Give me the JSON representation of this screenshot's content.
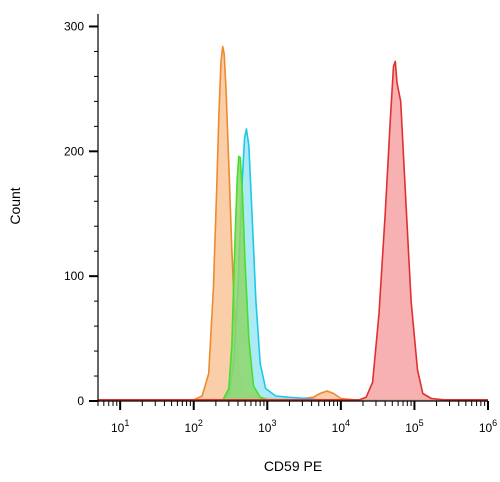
{
  "chart_data": {
    "type": "area",
    "xlabel": "CD59 PE",
    "ylabel": "Count",
    "x_scale": "log",
    "xlim": [
      5,
      1000000
    ],
    "ylim": [
      0,
      310
    ],
    "x_ticks": [
      {
        "value": 10,
        "base": "10",
        "exp": "1"
      },
      {
        "value": 100,
        "base": "10",
        "exp": "2"
      },
      {
        "value": 1000,
        "base": "10",
        "exp": "3"
      },
      {
        "value": 10000,
        "base": "10",
        "exp": "4"
      },
      {
        "value": 100000,
        "base": "10",
        "exp": "5"
      },
      {
        "value": 1000000,
        "base": "10",
        "exp": "6"
      }
    ],
    "y_ticks": [
      {
        "value": 0,
        "label": "0"
      },
      {
        "value": 100,
        "label": "100"
      },
      {
        "value": 200,
        "label": "200"
      },
      {
        "value": 300,
        "label": "300"
      }
    ],
    "grid": false,
    "legend": "none",
    "series": [
      {
        "color": "#ee8a2e",
        "fill": "#f9c59a",
        "points": [
          [
            5,
            1
          ],
          [
            100,
            1
          ],
          [
            130,
            4
          ],
          [
            160,
            22
          ],
          [
            185,
            90
          ],
          [
            205,
            170
          ],
          [
            220,
            230
          ],
          [
            235,
            272
          ],
          [
            248,
            284
          ],
          [
            260,
            278
          ],
          [
            275,
            250
          ],
          [
            300,
            190
          ],
          [
            330,
            120
          ],
          [
            370,
            55
          ],
          [
            420,
            18
          ],
          [
            500,
            6
          ],
          [
            700,
            3
          ],
          [
            1500,
            2
          ],
          [
            3000,
            2
          ],
          [
            4200,
            3
          ],
          [
            5200,
            6
          ],
          [
            6500,
            8
          ],
          [
            8000,
            6
          ],
          [
            10000,
            2
          ],
          [
            15000,
            1
          ],
          [
            1000000,
            1
          ]
        ]
      },
      {
        "color": "#1ec8e8",
        "fill": "#9ee8f5",
        "points": [
          [
            5,
            1
          ],
          [
            250,
            1
          ],
          [
            300,
            5
          ],
          [
            350,
            30
          ],
          [
            400,
            90
          ],
          [
            450,
            170
          ],
          [
            490,
            210
          ],
          [
            520,
            218
          ],
          [
            560,
            205
          ],
          [
            620,
            150
          ],
          [
            700,
            80
          ],
          [
            800,
            30
          ],
          [
            950,
            10
          ],
          [
            1300,
            4
          ],
          [
            2000,
            3
          ],
          [
            3500,
            2
          ],
          [
            5000,
            1
          ],
          [
            1000000,
            1
          ]
        ]
      },
      {
        "color": "#44e02e",
        "fill": "#8ed66a",
        "points": [
          [
            5,
            1
          ],
          [
            250,
            1
          ],
          [
            300,
            10
          ],
          [
            330,
            45
          ],
          [
            360,
            120
          ],
          [
            390,
            178
          ],
          [
            410,
            196
          ],
          [
            430,
            195
          ],
          [
            460,
            165
          ],
          [
            500,
            110
          ],
          [
            560,
            50
          ],
          [
            650,
            12
          ],
          [
            800,
            3
          ],
          [
            1000,
            1
          ],
          [
            1000000,
            1
          ]
        ]
      },
      {
        "color": "#e03030",
        "fill": "#f7a3a6",
        "points": [
          [
            5,
            1
          ],
          [
            18000,
            1
          ],
          [
            22000,
            3
          ],
          [
            27000,
            15
          ],
          [
            33000,
            70
          ],
          [
            40000,
            150
          ],
          [
            47000,
            225
          ],
          [
            52000,
            268
          ],
          [
            55000,
            272
          ],
          [
            58000,
            255
          ],
          [
            65000,
            240
          ],
          [
            75000,
            170
          ],
          [
            90000,
            80
          ],
          [
            110000,
            25
          ],
          [
            130000,
            6
          ],
          [
            170000,
            2
          ],
          [
            250000,
            1
          ],
          [
            1000000,
            1
          ]
        ]
      }
    ]
  }
}
